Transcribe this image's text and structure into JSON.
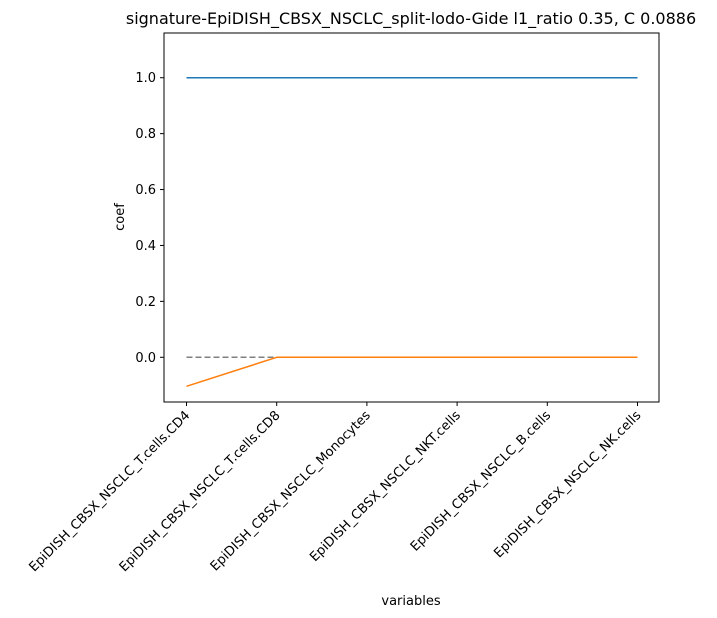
{
  "chart_data": {
    "type": "line",
    "title": "signature-EpiDISH_CBSX_NSCLC_split-lodo-Gide l1_ratio 0.35, C 0.0886",
    "xlabel": "variables",
    "ylabel": "coef",
    "categories": [
      "EpiDISH_CBSX_NSCLC_T.cells.CD4",
      "EpiDISH_CBSX_NSCLC_T.cells.CD8",
      "EpiDISH_CBSX_NSCLC_Monocytes",
      "EpiDISH_CBSX_NSCLC_NKT.cells",
      "EpiDISH_CBSX_NSCLC_B.cells",
      "EpiDISH_CBSX_NSCLC_NK.cells"
    ],
    "ylim": [
      -0.16,
      1.16
    ],
    "yticks": [
      0.0,
      0.2,
      0.4,
      0.6,
      0.8,
      1.0
    ],
    "ytick_labels": [
      "0.0",
      "0.2",
      "0.4",
      "0.6",
      "0.8",
      "1.0"
    ],
    "grid": false,
    "series": [
      {
        "values": [
          1.0,
          1.0,
          1.0,
          1.0,
          1.0,
          1.0
        ],
        "color": "#1f77b4",
        "style": "solid"
      },
      {
        "values": [
          -0.104,
          0.0,
          0.0,
          0.0,
          0.0,
          0.0
        ],
        "color": "#ff7f0e",
        "style": "solid"
      },
      {
        "values": [
          0.0,
          0.0,
          0.0,
          0.0,
          0.0,
          0.0
        ],
        "color": "#808080",
        "style": "dashed"
      }
    ]
  }
}
